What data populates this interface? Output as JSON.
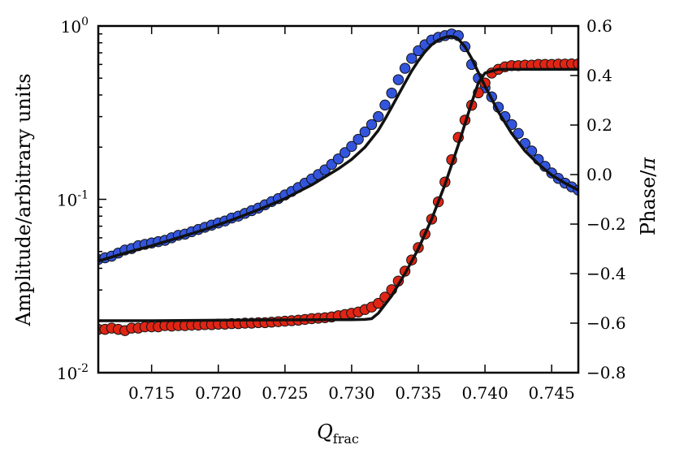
{
  "chart_data": {
    "type": "scatter",
    "title": "",
    "xlabel": {
      "main": "Q",
      "sub": "frac"
    },
    "ylabel_left": "Amplitude/arbitrary units",
    "ylabel_right": {
      "prefix": "Phase/",
      "symbol": "π"
    },
    "xlim": [
      0.711,
      0.747
    ],
    "ylim_left": [
      0.01,
      1.0
    ],
    "yscale_left": "log",
    "ylim_right": [
      -0.8,
      0.6
    ],
    "x_ticks": [
      {
        "value": 0.715,
        "label": "0.715"
      },
      {
        "value": 0.72,
        "label": "0.720"
      },
      {
        "value": 0.725,
        "label": "0.725"
      },
      {
        "value": 0.73,
        "label": "0.730"
      },
      {
        "value": 0.735,
        "label": "0.735"
      },
      {
        "value": 0.74,
        "label": "0.740"
      },
      {
        "value": 0.745,
        "label": "0.745"
      }
    ],
    "y_left_ticks": [
      {
        "value": 1.0,
        "base": "10",
        "exp": "0"
      },
      {
        "value": 0.1,
        "base": "10",
        "exp": "-1"
      },
      {
        "value": 0.01,
        "base": "10",
        "exp": "-2"
      }
    ],
    "y_right_ticks": [
      {
        "value": 0.6,
        "label": "0.6"
      },
      {
        "value": 0.4,
        "label": "0.4"
      },
      {
        "value": 0.2,
        "label": "0.2"
      },
      {
        "value": 0.0,
        "label": "0.0"
      },
      {
        "value": -0.2,
        "label": "−0.2"
      },
      {
        "value": -0.4,
        "label": "−0.4"
      },
      {
        "value": -0.6,
        "label": "−0.6"
      },
      {
        "value": -0.8,
        "label": "−0.8"
      }
    ],
    "grid": false,
    "legend": "none",
    "series": [
      {
        "kind": "points",
        "axis": "left",
        "color": "#3355dd",
        "x": [
          0.711,
          0.7115,
          0.712,
          0.7125,
          0.713,
          0.7135,
          0.714,
          0.7145,
          0.715,
          0.7155,
          0.716,
          0.7165,
          0.717,
          0.7175,
          0.718,
          0.7185,
          0.719,
          0.7195,
          0.72,
          0.7205,
          0.721,
          0.7215,
          0.722,
          0.7225,
          0.723,
          0.7235,
          0.724,
          0.7245,
          0.725,
          0.7255,
          0.726,
          0.7265,
          0.727,
          0.7275,
          0.728,
          0.7285,
          0.729,
          0.7295,
          0.73,
          0.7305,
          0.731,
          0.7315,
          0.732,
          0.7325,
          0.733,
          0.7335,
          0.734,
          0.7345,
          0.735,
          0.7355,
          0.736,
          0.7365,
          0.737,
          0.7375,
          0.738,
          0.7385,
          0.739,
          0.7395,
          0.74,
          0.7405,
          0.741,
          0.7415,
          0.742,
          0.7425,
          0.743,
          0.7435,
          0.744,
          0.7445,
          0.745,
          0.7455,
          0.746,
          0.7465,
          0.747
        ],
        "y": [
          0.045,
          0.046,
          0.047,
          0.049,
          0.051,
          0.052,
          0.054,
          0.055,
          0.056,
          0.057,
          0.058,
          0.06,
          0.062,
          0.063,
          0.065,
          0.067,
          0.069,
          0.071,
          0.073,
          0.075,
          0.078,
          0.08,
          0.083,
          0.086,
          0.089,
          0.093,
          0.097,
          0.101,
          0.106,
          0.111,
          0.117,
          0.124,
          0.131,
          0.139,
          0.148,
          0.159,
          0.171,
          0.186,
          0.202,
          0.222,
          0.245,
          0.27,
          0.3,
          0.35,
          0.41,
          0.49,
          0.57,
          0.65,
          0.72,
          0.78,
          0.83,
          0.86,
          0.88,
          0.9,
          0.88,
          0.76,
          0.6,
          0.5,
          0.44,
          0.39,
          0.34,
          0.3,
          0.27,
          0.24,
          0.21,
          0.19,
          0.17,
          0.155,
          0.142,
          0.132,
          0.124,
          0.118,
          0.113
        ]
      },
      {
        "kind": "points",
        "axis": "right",
        "color": "#e02515",
        "x": [
          0.711,
          0.7115,
          0.712,
          0.7125,
          0.713,
          0.7135,
          0.714,
          0.7145,
          0.715,
          0.7155,
          0.716,
          0.7165,
          0.717,
          0.7175,
          0.718,
          0.7185,
          0.719,
          0.7195,
          0.72,
          0.7205,
          0.721,
          0.7215,
          0.722,
          0.7225,
          0.723,
          0.7235,
          0.724,
          0.7245,
          0.725,
          0.7255,
          0.726,
          0.7265,
          0.727,
          0.7275,
          0.728,
          0.7285,
          0.729,
          0.7295,
          0.73,
          0.7305,
          0.731,
          0.7315,
          0.732,
          0.7325,
          0.733,
          0.7335,
          0.734,
          0.7345,
          0.735,
          0.7355,
          0.736,
          0.7365,
          0.737,
          0.7375,
          0.738,
          0.7385,
          0.739,
          0.7395,
          0.74,
          0.7405,
          0.741,
          0.7415,
          0.742,
          0.7425,
          0.743,
          0.7435,
          0.744,
          0.7445,
          0.745,
          0.7455,
          0.746,
          0.7465,
          0.747
        ],
        "y": [
          -0.625,
          -0.625,
          -0.62,
          -0.625,
          -0.63,
          -0.62,
          -0.62,
          -0.615,
          -0.615,
          -0.615,
          -0.61,
          -0.612,
          -0.61,
          -0.61,
          -0.608,
          -0.608,
          -0.606,
          -0.606,
          -0.604,
          -0.604,
          -0.602,
          -0.602,
          -0.6,
          -0.6,
          -0.598,
          -0.598,
          -0.596,
          -0.594,
          -0.592,
          -0.59,
          -0.588,
          -0.585,
          -0.582,
          -0.58,
          -0.578,
          -0.575,
          -0.57,
          -0.565,
          -0.56,
          -0.555,
          -0.545,
          -0.535,
          -0.52,
          -0.495,
          -0.465,
          -0.43,
          -0.39,
          -0.345,
          -0.295,
          -0.24,
          -0.18,
          -0.11,
          -0.03,
          0.06,
          0.15,
          0.22,
          0.28,
          0.33,
          0.37,
          0.41,
          0.425,
          0.435,
          0.44,
          0.44,
          0.442,
          0.442,
          0.445,
          0.445,
          0.445,
          0.446,
          0.446,
          0.447,
          0.447
        ]
      },
      {
        "kind": "line",
        "axis": "left",
        "color": "#111111",
        "x": [
          0.711,
          0.713,
          0.715,
          0.717,
          0.719,
          0.721,
          0.723,
          0.725,
          0.727,
          0.729,
          0.73,
          0.731,
          0.732,
          0.7325,
          0.733,
          0.7335,
          0.734,
          0.7345,
          0.735,
          0.7355,
          0.736,
          0.7365,
          0.737,
          0.7373,
          0.7375,
          0.7378,
          0.738,
          0.7385,
          0.739,
          0.7395,
          0.74,
          0.7405,
          0.741,
          0.742,
          0.743,
          0.744,
          0.745,
          0.746,
          0.747
        ],
        "y": [
          0.044,
          0.049,
          0.054,
          0.06,
          0.067,
          0.076,
          0.087,
          0.101,
          0.121,
          0.15,
          0.17,
          0.2,
          0.25,
          0.29,
          0.34,
          0.4,
          0.47,
          0.55,
          0.63,
          0.71,
          0.78,
          0.83,
          0.86,
          0.87,
          0.87,
          0.86,
          0.84,
          0.76,
          0.65,
          0.54,
          0.45,
          0.38,
          0.32,
          0.24,
          0.19,
          0.16,
          0.138,
          0.124,
          0.113
        ]
      },
      {
        "kind": "line",
        "axis": "right",
        "color": "#111111",
        "x": [
          0.711,
          0.715,
          0.72,
          0.725,
          0.728,
          0.73,
          0.731,
          0.7315,
          0.732,
          0.733,
          0.734,
          0.735,
          0.736,
          0.737,
          0.738,
          0.739,
          0.7395,
          0.74,
          0.741,
          0.743,
          0.745,
          0.747
        ],
        "y": [
          -0.59,
          -0.59,
          -0.588,
          -0.587,
          -0.586,
          -0.586,
          -0.585,
          -0.582,
          -0.56,
          -0.49,
          -0.4,
          -0.3,
          -0.18,
          -0.04,
          0.12,
          0.29,
          0.37,
          0.41,
          0.425,
          0.425,
          0.425,
          0.425
        ]
      }
    ]
  }
}
